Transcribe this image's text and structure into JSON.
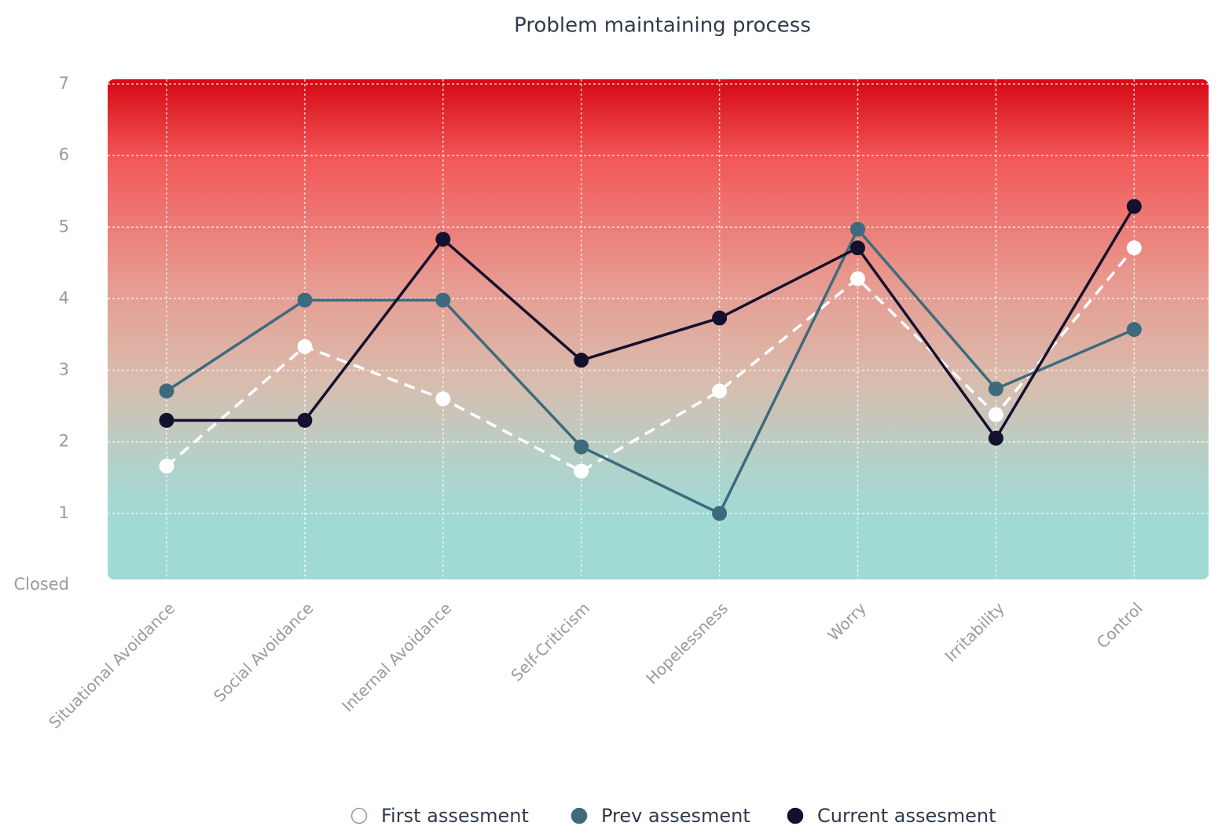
{
  "chart_data": {
    "type": "line",
    "title": "Problem maintaining process",
    "categories": [
      "Situational Avoidance",
      "Social Avoidance",
      "Internal Avoidance",
      "Self-Criticism",
      "Hopelessness",
      "Worry",
      "Irritability",
      "Control"
    ],
    "series": [
      {
        "name": "First assesment",
        "color": "#ffffff",
        "dashed": true,
        "values": [
          1.66,
          3.33,
          2.6,
          1.59,
          2.71,
          4.28,
          2.38,
          4.71
        ]
      },
      {
        "name": "Prev assesment",
        "color": "#3d6b7d",
        "dashed": false,
        "values": [
          2.71,
          3.98,
          3.98,
          1.93,
          1.0,
          4.97,
          2.74,
          3.57
        ]
      },
      {
        "name": "Current assesment",
        "color": "#14112e",
        "dashed": false,
        "values": [
          2.3,
          2.3,
          4.83,
          3.14,
          3.73,
          4.71,
          2.05,
          5.29
        ]
      }
    ],
    "ylim": [
      0,
      7
    ],
    "yticks": [
      {
        "value": 0,
        "label": "Closed"
      },
      1,
      2,
      3,
      4,
      5,
      6,
      7
    ],
    "grid": true
  }
}
